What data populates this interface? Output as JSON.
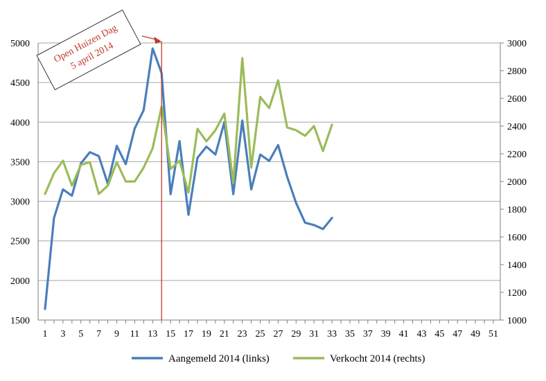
{
  "chart_data": {
    "type": "line",
    "title": "",
    "xlabel": "",
    "ylabel": "",
    "x": [
      1,
      2,
      3,
      4,
      5,
      6,
      7,
      8,
      9,
      10,
      11,
      12,
      13,
      14,
      15,
      16,
      17,
      18,
      19,
      20,
      21,
      22,
      23,
      24,
      25,
      26,
      27,
      28,
      29,
      30,
      31,
      32,
      33
    ],
    "x_ticks": [
      1,
      3,
      5,
      7,
      9,
      11,
      13,
      15,
      17,
      19,
      21,
      23,
      25,
      27,
      29,
      31,
      33,
      35,
      37,
      39,
      41,
      43,
      45,
      47,
      49,
      51
    ],
    "xlim": [
      1,
      51
    ],
    "ylim_left": [
      1500,
      5000
    ],
    "yticks_left": [
      1500,
      2000,
      2500,
      3000,
      3500,
      4000,
      4500,
      5000
    ],
    "ylim_right": [
      1000,
      3000
    ],
    "yticks_right": [
      1000,
      1200,
      1400,
      1600,
      1800,
      2000,
      2200,
      2400,
      2600,
      2800,
      3000
    ],
    "grid": "horizontal",
    "legend_position": "bottom",
    "series": [
      {
        "name": "Aangemeld 2014 (links)",
        "axis": "left",
        "color": "#4a7ebb",
        "values": [
          1640,
          2790,
          3150,
          3070,
          3480,
          3620,
          3570,
          3220,
          3700,
          3470,
          3920,
          4150,
          4930,
          4620,
          3090,
          3760,
          2830,
          3550,
          3690,
          3590,
          4000,
          3090,
          4020,
          3150,
          3590,
          3510,
          3710,
          3310,
          2980,
          2730,
          2700,
          2650,
          2790
        ]
      },
      {
        "name": "Verkocht 2014 (rechts)",
        "axis": "right",
        "color": "#9bbb59",
        "values": [
          1910,
          2060,
          2150,
          1970,
          2120,
          2140,
          1910,
          1970,
          2140,
          2000,
          2000,
          2100,
          2240,
          2540,
          2090,
          2150,
          1920,
          2380,
          2290,
          2370,
          2490,
          1990,
          2890,
          2100,
          2610,
          2530,
          2730,
          2390,
          2370,
          2330,
          2400,
          2220,
          2410
        ]
      }
    ],
    "annotation": {
      "lines": [
        "Open Huizen Dag",
        "5 april 2014"
      ],
      "x": 14,
      "color": "#c0392b"
    }
  }
}
